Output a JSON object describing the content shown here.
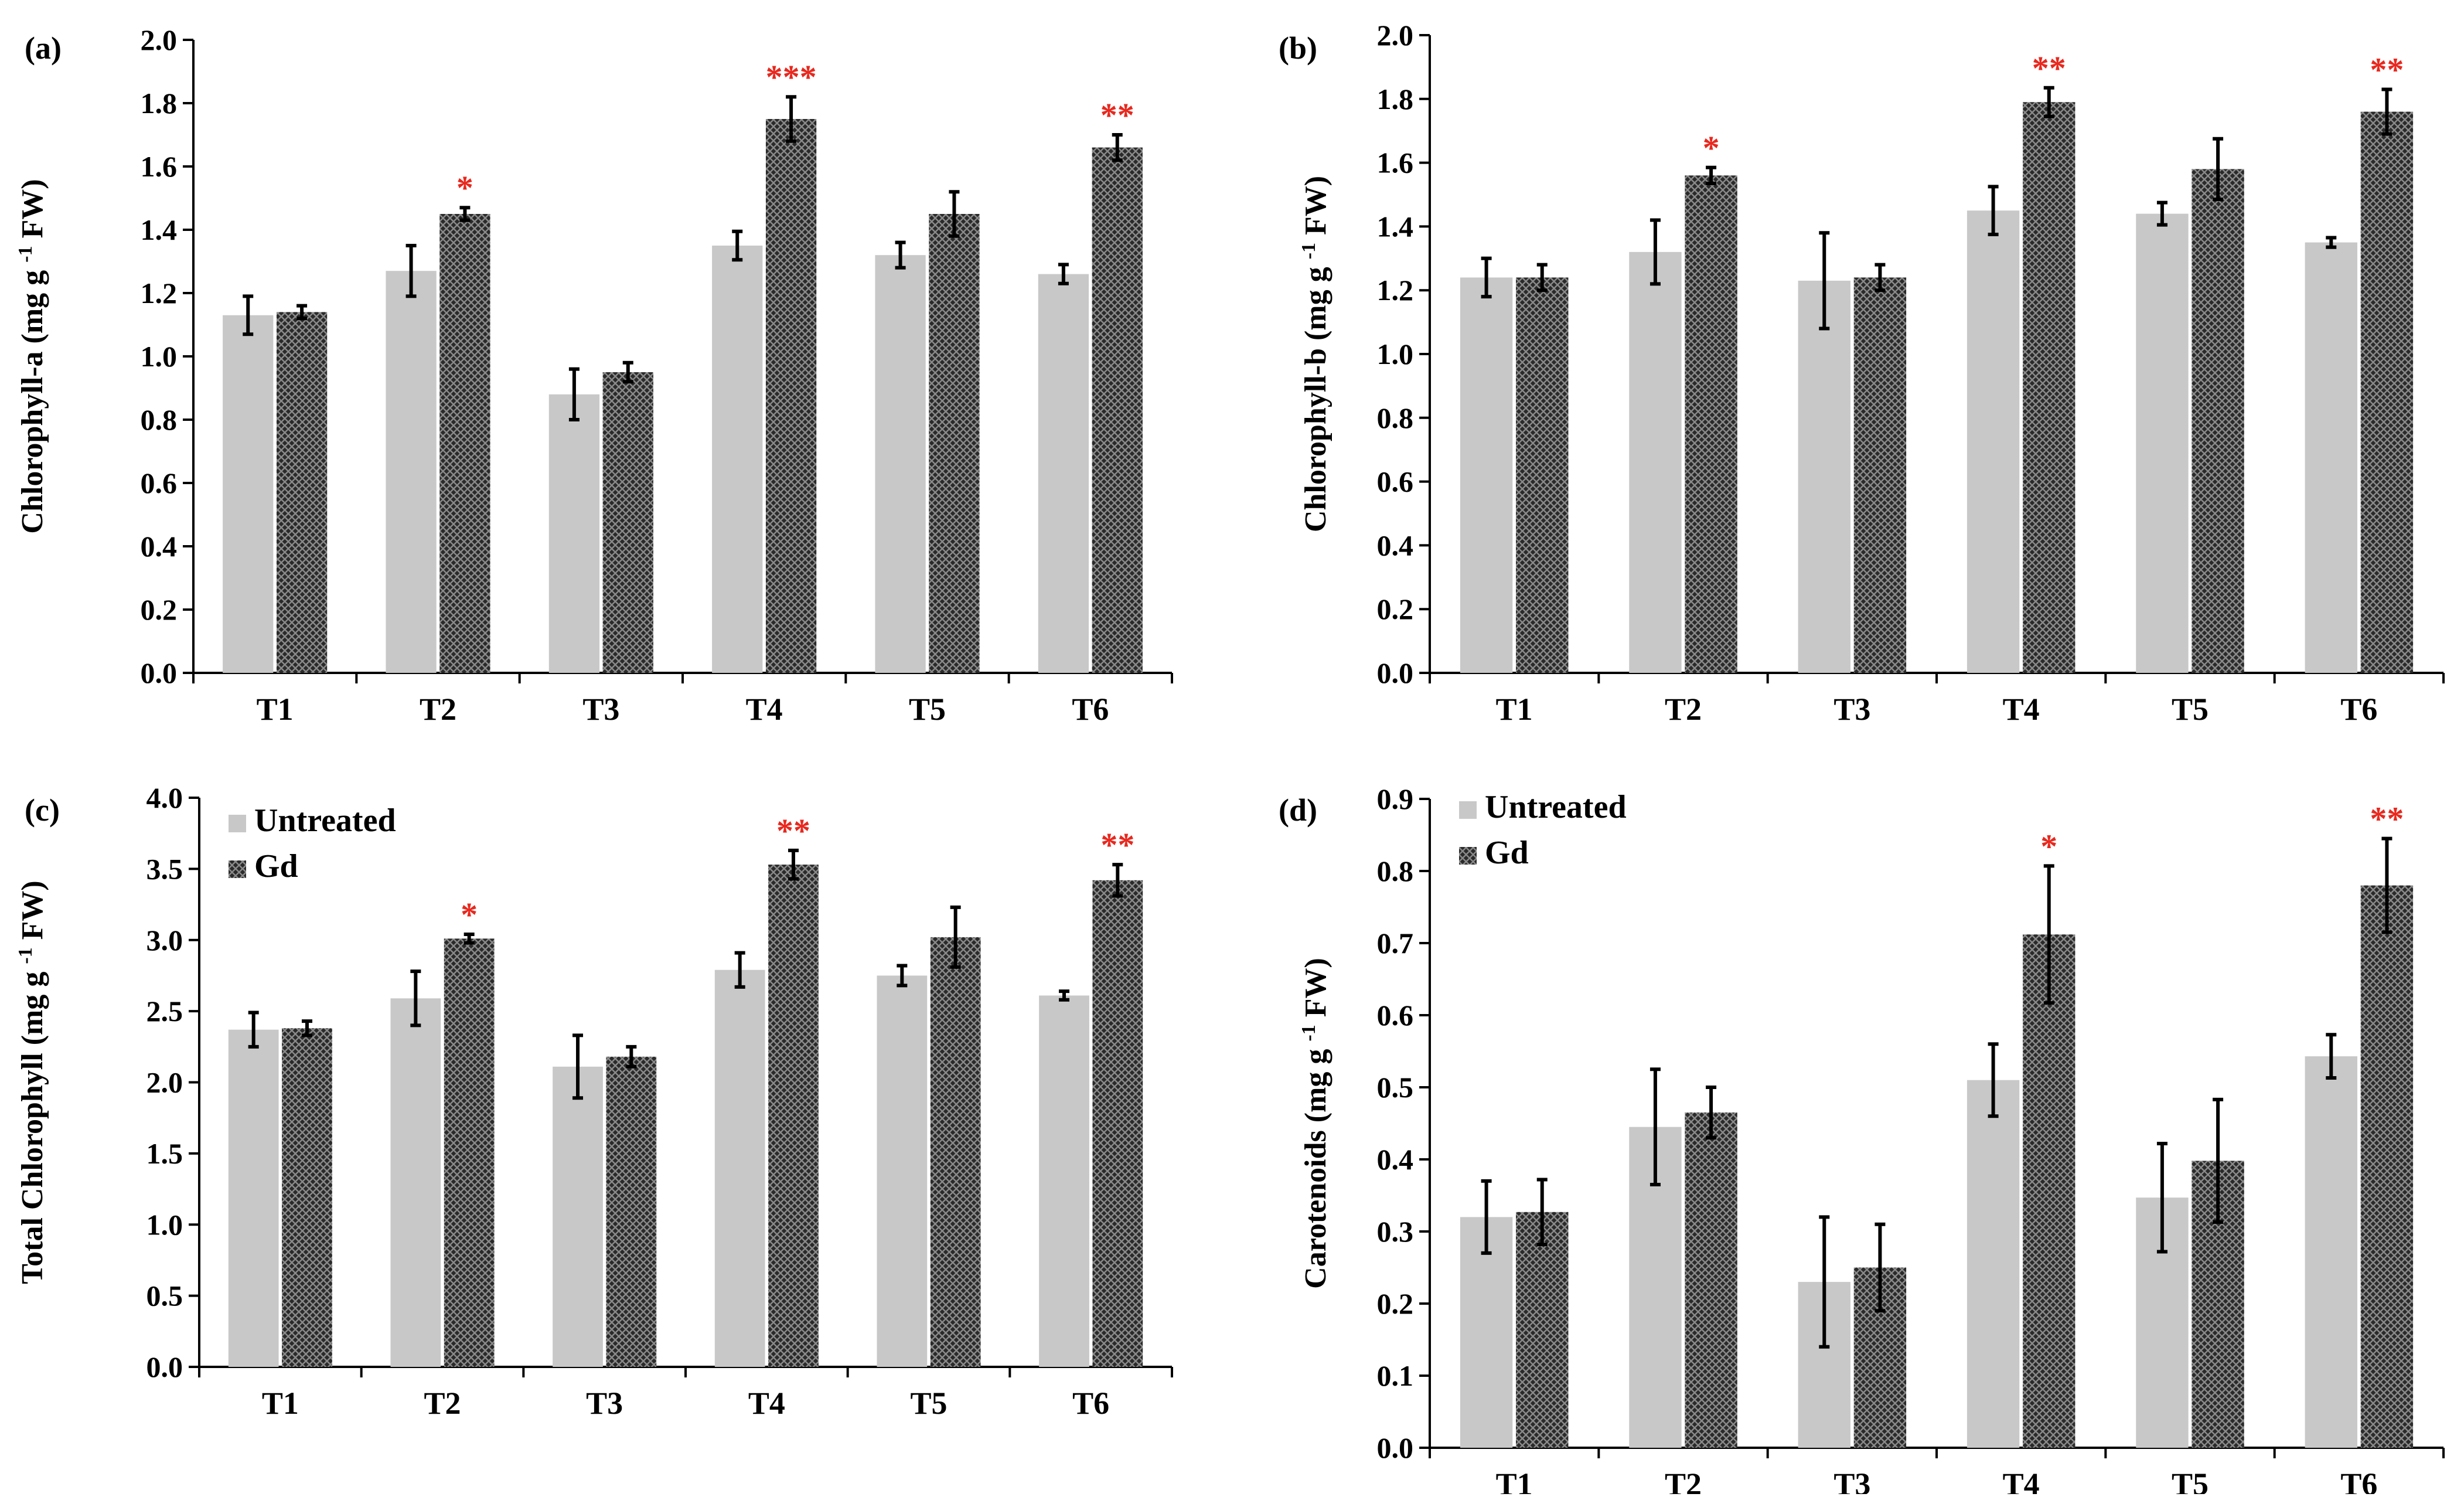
{
  "colors": {
    "untreated": "#c8c8c8",
    "gd": "#2a2a2a",
    "significance": "#e8281e"
  },
  "chart_data": [
    {
      "type": "bar",
      "panel": "(a)",
      "ylabel": "Chlorophyll-a (mg g-1 FW)",
      "ylim": [
        0,
        2.0
      ],
      "yticks": [
        "0.0",
        "0.2",
        "0.4",
        "0.6",
        "0.8",
        "1.0",
        "1.2",
        "1.4",
        "1.6",
        "1.8",
        "2.0"
      ],
      "categories": [
        "T1",
        "T2",
        "T3",
        "T4",
        "T5",
        "T6"
      ],
      "series": [
        {
          "name": "Untreated",
          "values": [
            1.13,
            1.27,
            0.88,
            1.35,
            1.32,
            1.26
          ],
          "errors": [
            0.06,
            0.08,
            0.08,
            0.045,
            0.04,
            0.03
          ]
        },
        {
          "name": "Gd",
          "values": [
            1.14,
            1.45,
            0.95,
            1.75,
            1.45,
            1.66
          ],
          "errors": [
            0.02,
            0.02,
            0.03,
            0.07,
            0.07,
            0.04
          ]
        }
      ],
      "significance": [
        "",
        "*",
        "",
        "***",
        "",
        "**"
      ]
    },
    {
      "type": "bar",
      "panel": "(b)",
      "ylabel": "Chlorophyll-b (mg g-1 FW)",
      "ylim": [
        0,
        2.0
      ],
      "yticks": [
        "0.0",
        "0.2",
        "0.4",
        "0.6",
        "0.8",
        "1.0",
        "1.2",
        "1.4",
        "1.6",
        "1.8",
        "2.0"
      ],
      "categories": [
        "T1",
        "T2",
        "T3",
        "T4",
        "T5",
        "T6"
      ],
      "series": [
        {
          "name": "Untreated",
          "values": [
            1.24,
            1.32,
            1.23,
            1.45,
            1.44,
            1.35
          ],
          "errors": [
            0.06,
            0.1,
            0.15,
            0.075,
            0.035,
            0.015
          ]
        },
        {
          "name": "Gd",
          "values": [
            1.24,
            1.56,
            1.24,
            1.79,
            1.58,
            1.76
          ],
          "errors": [
            0.04,
            0.025,
            0.04,
            0.045,
            0.095,
            0.07
          ]
        }
      ],
      "significance": [
        "",
        "*",
        "",
        "**",
        "",
        "**"
      ]
    },
    {
      "type": "bar",
      "panel": "(c)",
      "ylabel": "Total Chlorophyll (mg g-1 FW)",
      "ylim": [
        0,
        4.0
      ],
      "yticks": [
        "0.0",
        "0.5",
        "1.0",
        "1.5",
        "2.0",
        "2.5",
        "3.0",
        "3.5",
        "4.0"
      ],
      "categories": [
        "T1",
        "T2",
        "T3",
        "T4",
        "T5",
        "T6"
      ],
      "series": [
        {
          "name": "Untreated",
          "values": [
            2.37,
            2.59,
            2.11,
            2.79,
            2.75,
            2.61
          ],
          "errors": [
            0.12,
            0.19,
            0.22,
            0.12,
            0.07,
            0.03
          ]
        },
        {
          "name": "Gd",
          "values": [
            2.38,
            3.01,
            2.18,
            3.53,
            3.02,
            3.42
          ],
          "errors": [
            0.05,
            0.03,
            0.07,
            0.1,
            0.21,
            0.11
          ]
        }
      ],
      "significance": [
        "",
        "*",
        "",
        "**",
        "",
        "**"
      ],
      "legend": {
        "position": "top-left",
        "entries": [
          "Untreated",
          "Gd"
        ]
      }
    },
    {
      "type": "bar",
      "panel": "(d)",
      "ylabel": "Carotenoids (mg g-1 FW)",
      "ylim": [
        0,
        0.9
      ],
      "yticks": [
        "0.0",
        "0.1",
        "0.2",
        "0.3",
        "0.4",
        "0.5",
        "0.6",
        "0.7",
        "0.8",
        "0.9"
      ],
      "categories": [
        "T1",
        "T2",
        "T3",
        "T4",
        "T5",
        "T6"
      ],
      "series": [
        {
          "name": "Untreated",
          "values": [
            0.32,
            0.445,
            0.23,
            0.51,
            0.347,
            0.543
          ],
          "errors": [
            0.05,
            0.08,
            0.09,
            0.05,
            0.075,
            0.03
          ]
        },
        {
          "name": "Gd",
          "values": [
            0.327,
            0.465,
            0.25,
            0.712,
            0.398,
            0.78
          ],
          "errors": [
            0.045,
            0.035,
            0.06,
            0.095,
            0.085,
            0.065
          ]
        }
      ],
      "significance": [
        "",
        "",
        "",
        "*",
        "",
        "**"
      ],
      "legend": {
        "position": "top-left",
        "entries": [
          "Untreated",
          "Gd"
        ]
      }
    }
  ]
}
